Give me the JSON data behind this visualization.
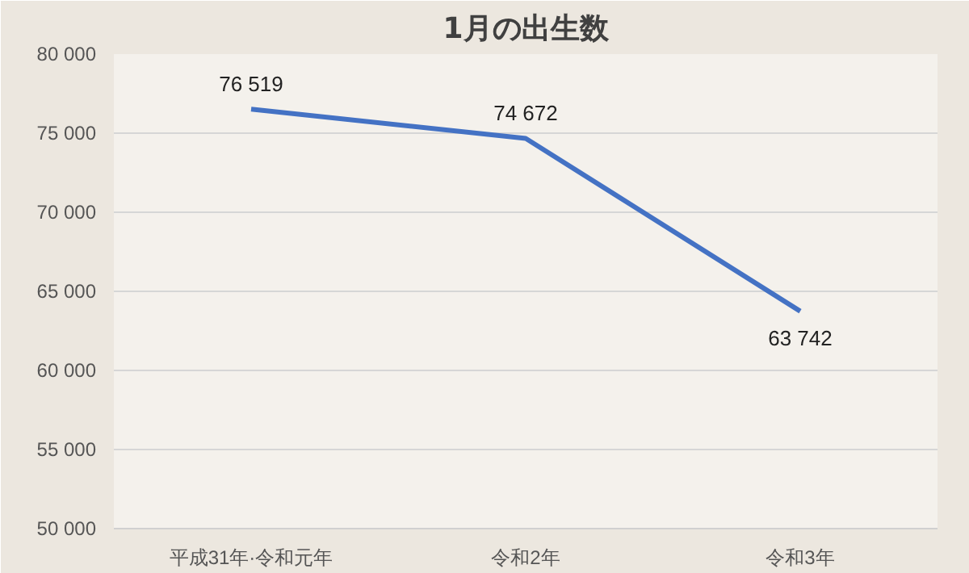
{
  "chart_data": {
    "type": "line",
    "title": "1月の出生数",
    "categories": [
      "平成31年·令和元年",
      "令和2年",
      "令和3年"
    ],
    "values": [
      76519,
      74672,
      63742
    ],
    "value_labels": [
      "76 519",
      "74 672",
      "63 742"
    ],
    "color": "#4472c4",
    "ylim": [
      50000,
      80000
    ],
    "yticks": [
      {
        "value": 50000,
        "label": "50 000"
      },
      {
        "value": 55000,
        "label": "55 000"
      },
      {
        "value": 60000,
        "label": "60 000"
      },
      {
        "value": 65000,
        "label": "65 000"
      },
      {
        "value": 70000,
        "label": "70 000"
      },
      {
        "value": 75000,
        "label": "75 000"
      },
      {
        "value": 80000,
        "label": "80 000"
      }
    ],
    "grid": "y",
    "marker": "none",
    "line_style": "solid"
  }
}
